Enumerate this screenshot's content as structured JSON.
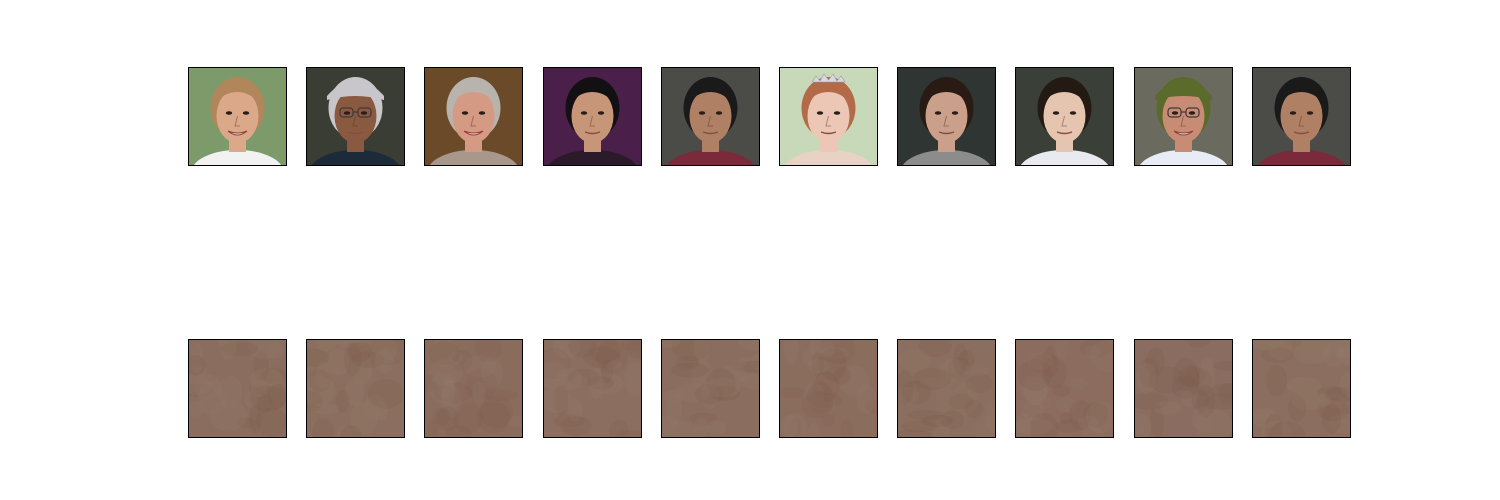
{
  "figure": {
    "top_row": {
      "tiles": [
        {
          "icon": "face-photo-young-man-blond",
          "bg": "#7d9a6a",
          "skin": "#dca88a",
          "hair": "#b0865a",
          "shirt": "#f2f2f2"
        },
        {
          "icon": "face-photo-man-cap-glasses",
          "bg": "#3a3d33",
          "skin": "#8a5a40",
          "hair": "#c9c6c9",
          "shirt": "#1d2a3a"
        },
        {
          "icon": "face-photo-older-woman-gray-hair",
          "bg": "#6b4a2a",
          "skin": "#d49a83",
          "hair": "#b9b3ae",
          "shirt": "#a8988c"
        },
        {
          "icon": "face-photo-young-woman-dark-hair",
          "bg": "#4a1f4a",
          "skin": "#c79679",
          "hair": "#121013",
          "shirt": "#2a1a2a"
        },
        {
          "icon": "face-photo-man-short-dark-hair",
          "bg": "#4b4c48",
          "skin": "#b08065",
          "hair": "#1b1a1b",
          "shirt": "#7a2a3a"
        },
        {
          "icon": "face-photo-woman-tiara",
          "bg": "#c7d9b9",
          "skin": "#ecc7b5",
          "hair": "#b36a48",
          "shirt": "#e8d2c4"
        },
        {
          "icon": "face-photo-boy-dark-hair",
          "bg": "#2e3532",
          "skin": "#caa08a",
          "hair": "#2a1a14",
          "shirt": "#8c8c8c"
        },
        {
          "icon": "face-photo-baby",
          "bg": "#3a3f38",
          "skin": "#e5c4b0",
          "hair": "#231a14",
          "shirt": "#e9e9f0"
        },
        {
          "icon": "face-photo-man-green-cap-glasses",
          "bg": "#6a6a5e",
          "skin": "#c88c74",
          "hair": "#5a6a2a",
          "shirt": "#e8ecf4"
        },
        {
          "icon": "face-photo-man-short-dark-hair",
          "bg": "#4b4c48",
          "skin": "#b08065",
          "hair": "#1b1a1b",
          "shirt": "#7a2a3a"
        }
      ]
    },
    "bottom_row": {
      "tiles": [
        {
          "icon": "noise-image",
          "color": "#8a6d5e"
        },
        {
          "icon": "noise-image",
          "color": "#8b6e5f"
        },
        {
          "icon": "noise-image",
          "color": "#8a6c5d"
        },
        {
          "icon": "noise-image",
          "color": "#8b6e60"
        },
        {
          "icon": "noise-image",
          "color": "#8a6d5f"
        },
        {
          "icon": "noise-image",
          "color": "#8b6d5e"
        },
        {
          "icon": "noise-image",
          "color": "#8a6e5f"
        },
        {
          "icon": "noise-image",
          "color": "#8b6c5e"
        },
        {
          "icon": "noise-image",
          "color": "#8a6d60"
        },
        {
          "icon": "noise-image",
          "color": "#8b6e5f"
        }
      ]
    }
  }
}
